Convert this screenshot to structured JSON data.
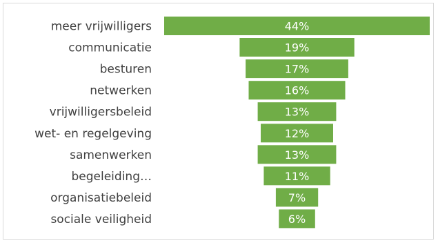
{
  "chart_data": {
    "type": "bar",
    "orientation": "horizontal",
    "layout": "funnel-centered",
    "categories": [
      "meer vrijwilligers",
      "communicatie",
      "besturen",
      "netwerken",
      "vrijwilligersbeleid",
      "wet- en regelgeving",
      "samenwerken",
      "begeleiding…",
      "organisatiebeleid",
      "sociale veiligheid"
    ],
    "values": [
      44,
      19,
      17,
      16,
      13,
      12,
      13,
      11,
      7,
      6
    ],
    "value_labels": [
      "44%",
      "19%",
      "17%",
      "16%",
      "13%",
      "12%",
      "13%",
      "11%",
      "7%",
      "6%"
    ],
    "title": "",
    "xlabel": "",
    "ylabel": "",
    "xlim": [
      0,
      44
    ],
    "grid": false,
    "legend": "none",
    "colors": {
      "bar": "#70ad47",
      "bar_text": "#ffffff",
      "category_text": "#404040",
      "border": "#d9d9d9"
    }
  }
}
